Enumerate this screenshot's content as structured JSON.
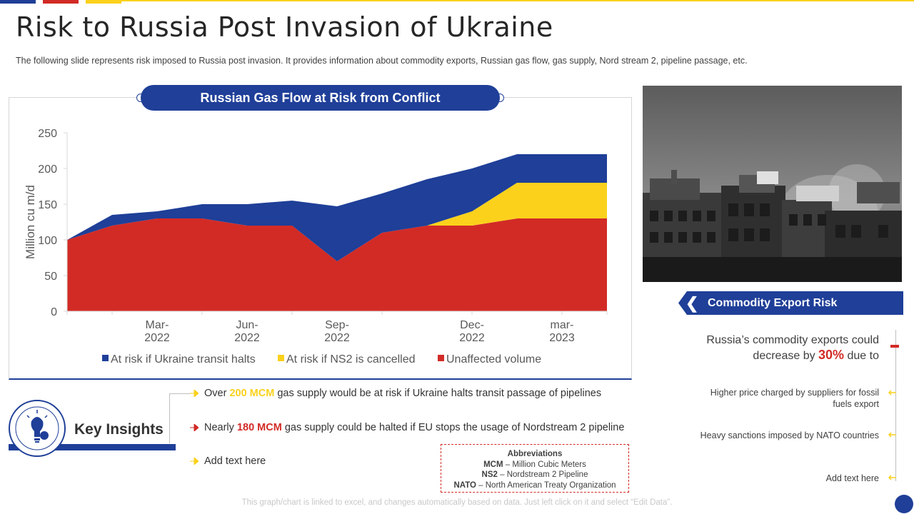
{
  "page": {
    "title": "Risk to Russia Post Invasion of Ukraine",
    "subtitle": "The following slide represents risk imposed to Russia post invasion. It provides information about commodity exports, Russian gas flow, gas supply, Nord stream 2, pipeline passage, etc.",
    "footnote": "This graph/chart is linked to excel, and changes automatically based on data. Just left click on it and select “Edit Data”."
  },
  "colors": {
    "blue": "#1f3f98",
    "red": "#d22b26",
    "yellow": "#fbd11c",
    "gray_text": "#404040"
  },
  "chart_data": {
    "type": "area",
    "stacked": true,
    "title": "Russian Gas Flow at Risk from Conflict",
    "ylabel": "Million cu m/d",
    "xlabel": "",
    "ylim": [
      0,
      250
    ],
    "yticks": [
      0,
      50,
      100,
      150,
      200,
      250
    ],
    "x_tick_labels": [
      {
        "index": 2,
        "line1": "Mar-",
        "line2": "2022"
      },
      {
        "index": 4,
        "line1": "Jun-",
        "line2": "2022"
      },
      {
        "index": 6,
        "line1": "Sep-",
        "line2": "2022"
      },
      {
        "index": 9,
        "line1": "Dec-",
        "line2": "2022"
      },
      {
        "index": 11,
        "line1": "mar-",
        "line2": "2023"
      }
    ],
    "series": [
      {
        "name": "Unaffected volume",
        "color": "#d22b26",
        "values": [
          100,
          120,
          130,
          130,
          120,
          120,
          70,
          110,
          120,
          120,
          130,
          130,
          130
        ]
      },
      {
        "name": "At risk if NS2 is cancelled",
        "color": "#fbd11c",
        "values": [
          0,
          0,
          0,
          0,
          0,
          0,
          0,
          0,
          0,
          20,
          50,
          50,
          50
        ]
      },
      {
        "name": "At risk if Ukraine transit halts",
        "color": "#1f3f98",
        "values": [
          0,
          15,
          10,
          20,
          30,
          35,
          77,
          55,
          65,
          60,
          40,
          40,
          40
        ]
      }
    ],
    "legend": [
      {
        "name": "At risk if Ukraine transit halts",
        "color": "#1f3f98"
      },
      {
        "name": "At risk if NS2 is cancelled",
        "color": "#fbd11c"
      },
      {
        "name": "Unaffected volume",
        "color": "#d22b26"
      }
    ],
    "legend_position": "bottom",
    "grid": false
  },
  "commodity": {
    "banner": "Commodity Export Risk",
    "main_prefix": "Russia’s commodity exports could decrease by ",
    "main_pct": "30%",
    "main_suffix": " due to",
    "items": [
      "Higher price charged by suppliers for fossil fuels export",
      "Heavy sanctions imposed by NATO countries",
      "Add text here"
    ]
  },
  "insights": {
    "label": "Key Insights",
    "items": [
      {
        "pre": "Over ",
        "hl": "200 MCM",
        "post": " gas supply would be at risk if Ukraine halts transit passage of pipelines"
      },
      {
        "pre": "Nearly ",
        "hl": "180 MCM",
        "post": " gas supply could be halted if EU stops the usage of Nordstream 2 pipeline"
      },
      {
        "pre": "Add text here",
        "hl": "",
        "post": ""
      }
    ]
  },
  "abbreviations": {
    "title": "Abbreviations",
    "items": [
      {
        "abbr": "MCM",
        "desc": " – Million Cubic Meters"
      },
      {
        "abbr": "NS2",
        "desc": " – Nordstream 2 Pipeline"
      },
      {
        "abbr": "NATO",
        "desc": " – North American Treaty Organization"
      }
    ]
  }
}
